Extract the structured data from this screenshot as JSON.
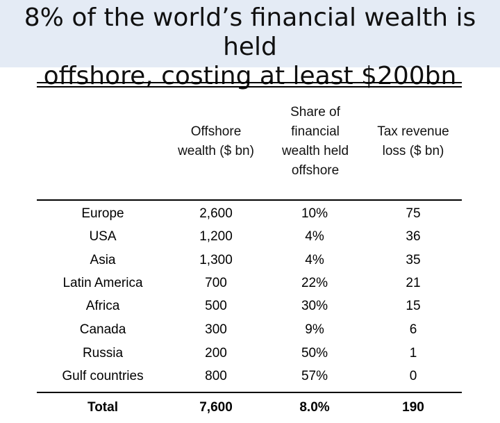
{
  "title": {
    "line1": "8% of the world’s financial wealth is held",
    "line2": "offshore, costing at least $200bn"
  },
  "table": {
    "headers": {
      "offshore_wealth": [
        "Offshore",
        "wealth ($ bn)"
      ],
      "share_offshore": [
        "Share of",
        "financial",
        "wealth held",
        "offshore"
      ],
      "tax_loss": [
        "Tax revenue",
        "loss ($ bn)"
      ]
    },
    "rows": [
      {
        "region": "Europe",
        "offshore_wealth": "2,600",
        "share": "10%",
        "tax_loss": "75"
      },
      {
        "region": "USA",
        "offshore_wealth": "1,200",
        "share": "4%",
        "tax_loss": "36"
      },
      {
        "region": "Asia",
        "offshore_wealth": "1,300",
        "share": "4%",
        "tax_loss": "35"
      },
      {
        "region": "Latin America",
        "offshore_wealth": "700",
        "share": "22%",
        "tax_loss": "21"
      },
      {
        "region": "Africa",
        "offshore_wealth": "500",
        "share": "30%",
        "tax_loss": "15"
      },
      {
        "region": "Canada",
        "offshore_wealth": "300",
        "share": "9%",
        "tax_loss": "6"
      },
      {
        "region": "Russia",
        "offshore_wealth": "200",
        "share": "50%",
        "tax_loss": "1"
      },
      {
        "region": "Gulf countries",
        "offshore_wealth": "800",
        "share": "57%",
        "tax_loss": "0"
      }
    ],
    "total": {
      "region": "Total",
      "offshore_wealth": "7,600",
      "share": "8.0%",
      "tax_loss": "190"
    }
  },
  "colors": {
    "title_band": "#e4ebf5",
    "text": "#000000"
  }
}
